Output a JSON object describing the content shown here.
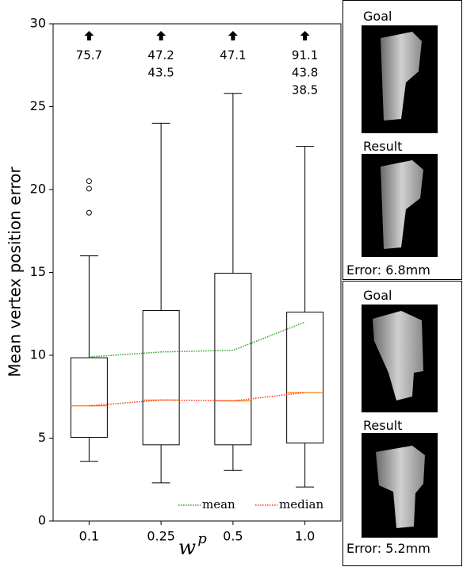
{
  "chart_data": {
    "type": "box",
    "ylabel": "Mean vertex position error",
    "xlabel": "w",
    "xlabel_superscript": "p",
    "categories": [
      "0.1",
      "0.25",
      "0.5",
      "1.0"
    ],
    "boxes": [
      {
        "whislo": 3.6,
        "q1": 5.05,
        "med": 6.95,
        "q3": 9.85,
        "whishi": 16.0,
        "fliers": [
          18.6,
          20.05,
          20.5
        ],
        "offscale": [
          75.7
        ]
      },
      {
        "whislo": 2.3,
        "q1": 4.6,
        "med": 7.3,
        "q3": 12.7,
        "whishi": 24.0,
        "fliers": [],
        "offscale": [
          47.2,
          43.5
        ]
      },
      {
        "whislo": 3.05,
        "q1": 4.6,
        "med": 7.25,
        "q3": 14.95,
        "whishi": 25.8,
        "fliers": [],
        "offscale": [
          47.1
        ]
      },
      {
        "whislo": 2.05,
        "q1": 4.7,
        "med": 7.75,
        "q3": 12.6,
        "whishi": 22.6,
        "fliers": [],
        "offscale": [
          91.1,
          43.8,
          38.5
        ]
      }
    ],
    "box_median_color": "#ff7f0e",
    "series": [
      {
        "name": "mean",
        "color": "#2ca02c",
        "values": [
          9.9,
          10.2,
          10.3,
          12.0
        ]
      },
      {
        "name": "median",
        "color": "#ff3a1a",
        "values": [
          6.95,
          7.3,
          7.25,
          7.75
        ]
      }
    ],
    "ylim": [
      0,
      30
    ],
    "yticks": [
      0,
      5,
      10,
      15,
      20,
      25,
      30
    ]
  },
  "panels": [
    {
      "goal": "Goal",
      "result": "Result",
      "error": "Error: 6.8mm"
    },
    {
      "goal": "Goal",
      "result": "Result",
      "error": "Error: 5.2mm"
    }
  ]
}
